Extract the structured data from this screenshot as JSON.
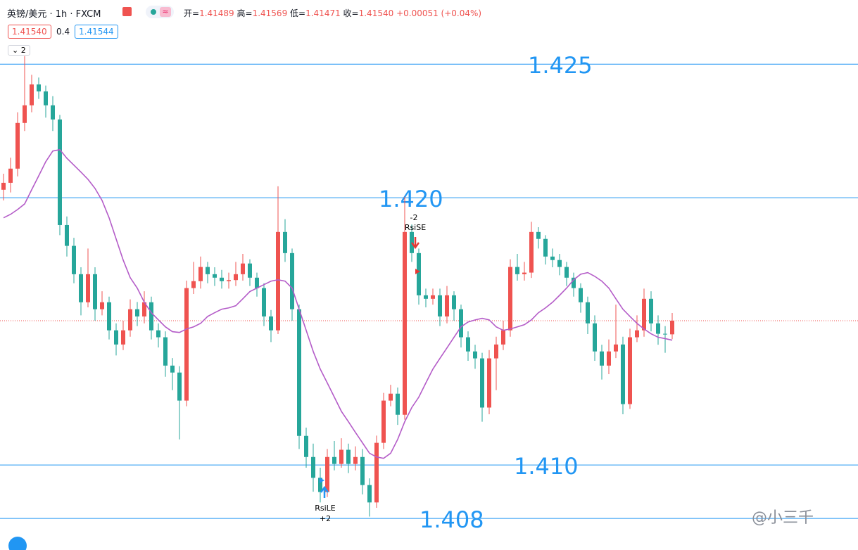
{
  "header": {
    "symbol": "英镑/美元 · 1h · FXCM",
    "ohlc": [
      {
        "label": "开=",
        "value": "1.41489"
      },
      {
        "label": "高=",
        "value": "1.41569"
      },
      {
        "label": "低=",
        "value": "1.41471"
      },
      {
        "label": "收=",
        "value": "1.41540"
      }
    ],
    "change": "+0.00051 (+0.04%)",
    "bid": "1.41540",
    "spread": 0.4,
    "ask": "1.41544",
    "collapse": 2
  },
  "chart_data": {
    "type": "candlestick",
    "open": [
      1.4203,
      1.42056,
      1.42109,
      1.4228,
      1.42346,
      1.42424,
      1.42398,
      1.42346,
      1.42293,
      1.41898,
      1.4182,
      1.41714,
      1.41609,
      1.41714,
      1.41583,
      1.41609,
      1.41504,
      1.41451,
      1.41504,
      1.41583,
      1.41556,
      1.41609,
      1.41504,
      1.41478,
      1.41372,
      1.41346,
      1.41241,
      1.41662,
      1.41688,
      1.41741,
      1.41714,
      1.41701,
      1.41688,
      1.41692,
      1.41714,
      1.41754,
      1.41701,
      1.41662,
      1.41556,
      1.41504,
      1.41872,
      1.41793,
      1.41583,
      1.41109,
      1.4103,
      1.40952,
      1.40899,
      1.4103,
      1.41004,
      1.41057,
      1.41004,
      1.4103,
      1.40925,
      1.4086,
      1.41083,
      1.41241,
      1.41267,
      1.41188,
      1.41872,
      1.41793,
      1.41635,
      1.41622,
      1.41635,
      1.41556,
      1.41635,
      1.41583,
      1.41478,
      1.41425,
      1.41399,
      1.41215,
      1.41399,
      1.41451,
      1.41504,
      1.41741,
      1.41714,
      1.4172,
      1.41872,
      1.41846,
      1.4178,
      1.41767,
      1.41741,
      1.41701,
      1.41662,
      1.41609,
      1.4153,
      1.41425,
      1.41372,
      1.41425,
      1.41451,
      1.41228,
      1.41478,
      1.41504,
      1.41622,
      1.4153,
      1.41491,
      1.41489
    ],
    "high": [
      1.4209,
      1.4215,
      1.4232,
      1.4253,
      1.4246,
      1.4245,
      1.4242,
      1.4238,
      1.4231,
      1.4193,
      1.4185,
      1.4174,
      1.4181,
      1.4174,
      1.4165,
      1.4163,
      1.4153,
      1.4154,
      1.4162,
      1.4161,
      1.4165,
      1.4163,
      1.4153,
      1.415,
      1.414,
      1.4137,
      1.4169,
      1.4176,
      1.4178,
      1.4176,
      1.4174,
      1.4173,
      1.4172,
      1.4176,
      1.4179,
      1.4177,
      1.4172,
      1.4168,
      1.4158,
      1.42043,
      1.4192,
      1.4181,
      1.416,
      1.4114,
      1.4108,
      1.4099,
      1.4106,
      1.4109,
      1.411,
      1.4108,
      1.4107,
      1.4106,
      1.4095,
      1.4111,
      1.4127,
      1.413,
      1.4129,
      1.42004,
      1.419,
      1.4181,
      1.4166,
      1.4166,
      1.4166,
      1.4167,
      1.4165,
      1.416,
      1.415,
      1.4145,
      1.4142,
      1.4143,
      1.4148,
      1.4154,
      1.4177,
      1.4179,
      1.4176,
      1.4191,
      1.4189,
      1.4186,
      1.4181,
      1.4179,
      1.4176,
      1.4172,
      1.4168,
      1.4163,
      1.4156,
      1.4145,
      1.4147,
      1.416,
      1.4148,
      1.4151,
      1.4156,
      1.4166,
      1.4165,
      1.4156,
      1.4152,
      1.41569
    ],
    "low": [
      1.4199,
      1.4202,
      1.4208,
      1.4225,
      1.4232,
      1.4237,
      1.423,
      1.4225,
      1.4186,
      1.4178,
      1.4168,
      1.4156,
      1.4159,
      1.4154,
      1.4156,
      1.4147,
      1.4141,
      1.4143,
      1.4148,
      1.4152,
      1.4153,
      1.4147,
      1.4144,
      1.4133,
      1.4128,
      1.41096,
      1.4122,
      1.4164,
      1.4166,
      1.4168,
      1.4167,
      1.4166,
      1.4166,
      1.4167,
      1.4169,
      1.4167,
      1.4163,
      1.4152,
      1.4146,
      1.4149,
      1.4176,
      1.4154,
      1.4106,
      1.4099,
      1.409,
      1.4086,
      1.4088,
      1.4098,
      1.4099,
      1.4097,
      1.4098,
      1.4089,
      1.40807,
      1.4084,
      1.4106,
      1.4122,
      1.4115,
      1.4117,
      1.4176,
      1.416,
      1.4159,
      1.416,
      1.4152,
      1.4153,
      1.4154,
      1.4144,
      1.4139,
      1.4136,
      1.41162,
      1.4119,
      1.4128,
      1.4143,
      1.4148,
      1.4169,
      1.4169,
      1.417,
      1.4181,
      1.4175,
      1.4174,
      1.4171,
      1.4167,
      1.4163,
      1.4157,
      1.4149,
      1.4139,
      1.4132,
      1.4134,
      1.414,
      1.4119,
      1.4121,
      1.4146,
      1.4148,
      1.415,
      1.4145,
      1.4142,
      1.41471
    ],
    "close": [
      1.42056,
      1.42109,
      1.4228,
      1.42346,
      1.42424,
      1.42398,
      1.42346,
      1.42293,
      1.41898,
      1.4182,
      1.41714,
      1.41609,
      1.41714,
      1.41583,
      1.41609,
      1.41504,
      1.41451,
      1.41504,
      1.41583,
      1.41556,
      1.41609,
      1.41504,
      1.41478,
      1.41372,
      1.41346,
      1.41241,
      1.41662,
      1.41688,
      1.41741,
      1.41714,
      1.41701,
      1.41688,
      1.41692,
      1.41714,
      1.41754,
      1.41701,
      1.41662,
      1.41556,
      1.41504,
      1.41872,
      1.41793,
      1.41583,
      1.41109,
      1.4103,
      1.40952,
      1.40899,
      1.4103,
      1.41004,
      1.41057,
      1.41004,
      1.4103,
      1.40925,
      1.4086,
      1.41083,
      1.41241,
      1.41267,
      1.41188,
      1.41872,
      1.41793,
      1.41635,
      1.41622,
      1.41635,
      1.41556,
      1.41635,
      1.41583,
      1.41478,
      1.41425,
      1.41399,
      1.41215,
      1.41399,
      1.41451,
      1.41504,
      1.41741,
      1.41714,
      1.4172,
      1.41872,
      1.41846,
      1.4178,
      1.41767,
      1.41741,
      1.41701,
      1.41662,
      1.41609,
      1.4153,
      1.41425,
      1.41372,
      1.41425,
      1.41451,
      1.41228,
      1.41478,
      1.41504,
      1.41622,
      1.4153,
      1.41491,
      1.41489,
      1.4154
    ],
    "up_color": "#ef5350",
    "down_color": "#26a69a",
    "ma": {
      "color": "#b45cc8",
      "values": [
        1.41925,
        1.41938,
        1.41956,
        1.41977,
        1.4203,
        1.42082,
        1.42135,
        1.42175,
        1.4218,
        1.42148,
        1.42122,
        1.42096,
        1.42069,
        1.42035,
        1.4199,
        1.41925,
        1.41846,
        1.41767,
        1.41701,
        1.41662,
        1.41609,
        1.4157,
        1.41543,
        1.41517,
        1.41499,
        1.41496,
        1.41509,
        1.41517,
        1.4153,
        1.41556,
        1.4157,
        1.41583,
        1.41588,
        1.41596,
        1.41622,
        1.41649,
        1.41662,
        1.41675,
        1.41688,
        1.41693,
        1.41688,
        1.41662,
        1.41583,
        1.41504,
        1.41425,
        1.41359,
        1.41307,
        1.41254,
        1.41201,
        1.41162,
        1.41122,
        1.41083,
        1.41044,
        1.4103,
        1.41025,
        1.41044,
        1.41096,
        1.41162,
        1.41215,
        1.41254,
        1.41307,
        1.41359,
        1.41399,
        1.41438,
        1.41478,
        1.41517,
        1.41535,
        1.41543,
        1.41549,
        1.41543,
        1.41517,
        1.41504,
        1.41509,
        1.41517,
        1.41525,
        1.41543,
        1.4157,
        1.41588,
        1.41609,
        1.41635,
        1.41662,
        1.41693,
        1.41714,
        1.4172,
        1.41706,
        1.41688,
        1.41662,
        1.41622,
        1.41583,
        1.41556,
        1.4153,
        1.41509,
        1.41491,
        1.41478,
        1.41473,
        1.41467
      ]
    },
    "ylim": [
      1.40682,
      1.4274
    ],
    "levels": [
      1.425,
      {
        "value": 1.42,
        "label": "1.420"
      },
      {
        "value": 1.41,
        "label": "1.410"
      },
      1.408
    ],
    "level_color": "#2196f3",
    "last_line_color": "#ef5350",
    "signals": [
      {
        "name": "RsiSE",
        "qty": -2
      },
      {
        "name": "RsiLE",
        "qty": {
          "value": 2,
          "label": "+2"
        }
      }
    ],
    "watermark": "@小三千"
  }
}
